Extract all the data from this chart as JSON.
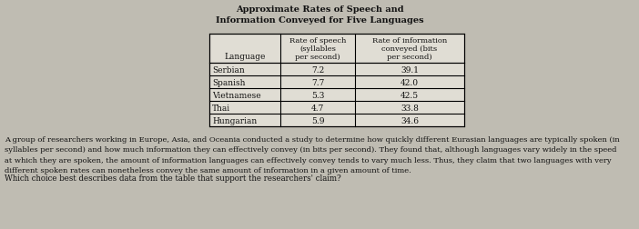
{
  "title_line1": "Approximate Rates of Speech and",
  "title_line2": "Information Conveyed for Five Languages",
  "col_headers": [
    "Language",
    "Rate of speech\n(syllables\nper second)",
    "Rate of information\nconveyed (bits\nper second)"
  ],
  "rows": [
    [
      "Serbian",
      "7.2",
      "39.1"
    ],
    [
      "Spanish",
      "7.7",
      "42.0"
    ],
    [
      "Vietnamese",
      "5.3",
      "42.5"
    ],
    [
      "Thai",
      "4.7",
      "33.8"
    ],
    [
      "Hungarian",
      "5.9",
      "34.6"
    ]
  ],
  "paragraph": "A group of researchers working in Europe, Asia, and Oceania conducted a study to determine how quickly different Eurasian languages are typically spoken (in\nsyllables per second) and how much information they can effectively convey (in bits per second). They found that, although languages vary widely in the speed\nat which they are spoken, the amount of information languages can effectively convey tends to vary much less. Thus, they claim that two languages with very\ndifferent spoken rates can nonetheless convey the same amount of information in a given amount of time.",
  "question": "Which choice best describes data from the table that support the researchers' claim?",
  "bg_color": "#bfbcb2",
  "table_bg": "#e0ddd4",
  "text_color": "#111111",
  "title_fontsize": 7.0,
  "body_fontsize": 6.5,
  "para_fontsize": 6.0,
  "question_fontsize": 6.2
}
